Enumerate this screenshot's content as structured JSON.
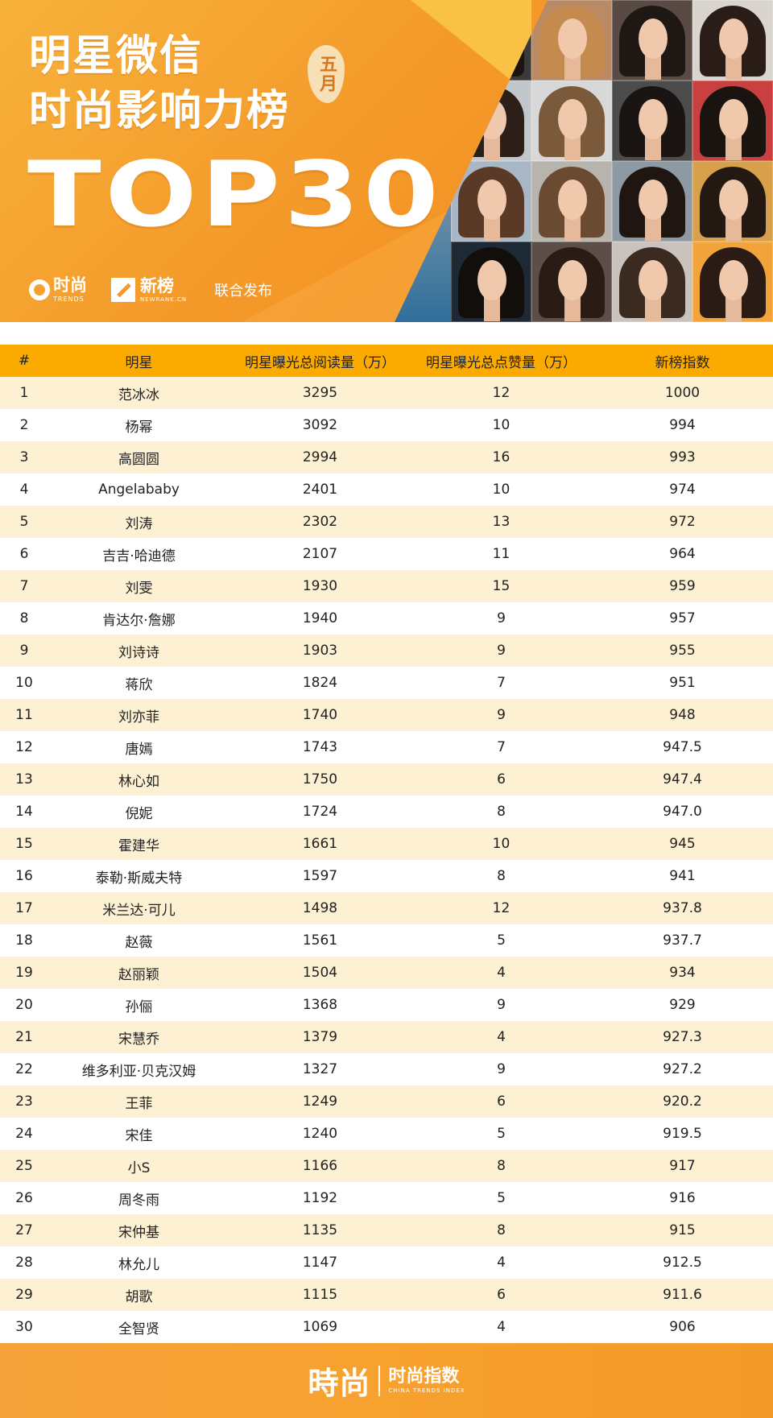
{
  "banner": {
    "title_line1": "明星微信",
    "title_line2": "时尚影响力榜",
    "month": "五月",
    "top": "TOP30",
    "logo1": {
      "cn": "时尚",
      "en": "TRENDS"
    },
    "logo2": {
      "cn": "新榜",
      "en": "NEWRANK.CN"
    },
    "joint": "联合发布"
  },
  "table": {
    "headers": [
      "#",
      "明星",
      "明星曝光总阅读量（万）",
      "明星曝光总点赞量（万）",
      "新榜指数"
    ],
    "rows": [
      [
        "1",
        "范冰冰",
        "3295",
        "12",
        "1000"
      ],
      [
        "2",
        "杨幂",
        "3092",
        "10",
        "994"
      ],
      [
        "3",
        "高圆圆",
        "2994",
        "16",
        "993"
      ],
      [
        "4",
        "Angelababy",
        "2401",
        "10",
        "974"
      ],
      [
        "5",
        "刘涛",
        "2302",
        "13",
        "972"
      ],
      [
        "6",
        "吉吉·哈迪德",
        "2107",
        "11",
        "964"
      ],
      [
        "7",
        "刘雯",
        "1930",
        "15",
        "959"
      ],
      [
        "8",
        "肯达尔·詹娜",
        "1940",
        "9",
        "957"
      ],
      [
        "9",
        "刘诗诗",
        "1903",
        "9",
        "955"
      ],
      [
        "10",
        "蒋欣",
        "1824",
        "7",
        "951"
      ],
      [
        "11",
        "刘亦菲",
        "1740",
        "9",
        "948"
      ],
      [
        "12",
        "唐嫣",
        "1743",
        "7",
        "947.5"
      ],
      [
        "13",
        "林心如",
        "1750",
        "6",
        "947.4"
      ],
      [
        "14",
        "倪妮",
        "1724",
        "8",
        "947.0"
      ],
      [
        "15",
        "霍建华",
        "1661",
        "10",
        "945"
      ],
      [
        "16",
        "泰勒·斯威夫特",
        "1597",
        "8",
        "941"
      ],
      [
        "17",
        "米兰达·可儿",
        "1498",
        "12",
        "937.8"
      ],
      [
        "18",
        "赵薇",
        "1561",
        "5",
        "937.7"
      ],
      [
        "19",
        "赵丽颖",
        "1504",
        "4",
        "934"
      ],
      [
        "20",
        "孙俪",
        "1368",
        "9",
        "929"
      ],
      [
        "21",
        "宋慧乔",
        "1379",
        "4",
        "927.3"
      ],
      [
        "22",
        "维多利亚·贝克汉姆",
        "1327",
        "9",
        "927.2"
      ],
      [
        "23",
        "王菲",
        "1249",
        "6",
        "920.2"
      ],
      [
        "24",
        "宋佳",
        "1240",
        "5",
        "919.5"
      ],
      [
        "25",
        "小S",
        "1166",
        "8",
        "917"
      ],
      [
        "26",
        "周冬雨",
        "1192",
        "5",
        "916"
      ],
      [
        "27",
        "宋仲基",
        "1135",
        "8",
        "915"
      ],
      [
        "28",
        "林允儿",
        "1147",
        "4",
        "912.5"
      ],
      [
        "29",
        "胡歌",
        "1115",
        "6",
        "911.6"
      ],
      [
        "30",
        "全智贤",
        "1069",
        "4",
        "906"
      ]
    ]
  },
  "footer": {
    "brand": "時尚",
    "index_cn": "时尚指数",
    "index_en": "CHINA TRENDS INDEX"
  },
  "colors": {
    "accent": "#f49a2a",
    "header_row": "#fbaa00",
    "stripe": "#fef0d2"
  }
}
